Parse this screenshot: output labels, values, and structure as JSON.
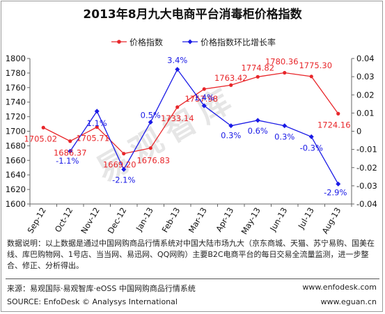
{
  "title": "2013年8月九大电商平台消毒柜价格指数",
  "legend": {
    "series1": "价格指数",
    "series2": "价格指数环比增长率"
  },
  "chart_data": {
    "type": "line",
    "title": "2013年8月九大电商平台消毒柜价格指数",
    "categories": [
      "Sep-12",
      "Oct-12",
      "Nov-12",
      "Dec-12",
      "Jan-13",
      "Feb-13",
      "Mar-13",
      "Apr-13",
      "May-13",
      "Jun-13",
      "Jul-13",
      "Aug-13"
    ],
    "series": [
      {
        "name": "价格指数",
        "axis": "left",
        "color": "#e8262a",
        "values": [
          1705.02,
          1686.37,
          1705.71,
          1669.2,
          1676.83,
          1733.14,
          1757.98,
          1763.42,
          1774.82,
          1780.36,
          1775.3,
          1724.16
        ],
        "labels": [
          "1705.02",
          "1686.37",
          "1705.71",
          "1669.20",
          "1676.83",
          "1733.14",
          "1757.98",
          "1763.42",
          "1774.82",
          "1780.36",
          "1775.30",
          "1724.16"
        ]
      },
      {
        "name": "价格指数环比增长率",
        "axis": "right",
        "color": "#1a1ae6",
        "values": [
          null,
          -0.011,
          0.011,
          -0.021,
          0.005,
          0.034,
          0.014,
          0.003,
          0.006,
          0.003,
          -0.003,
          -0.029
        ],
        "labels": [
          "",
          "-1.1%",
          "1.1%",
          "-2.1%",
          "0.5%",
          "3.4%",
          "1.4%",
          "0.3%",
          "0.6%",
          "0.3%",
          "-0.3%",
          "-2.9%"
        ]
      }
    ],
    "y_left": {
      "min": 1600,
      "max": 1800,
      "step": 20,
      "ticks": [
        "1600",
        "1620",
        "1640",
        "1660",
        "1680",
        "1700",
        "1720",
        "1740",
        "1760",
        "1780",
        "1800"
      ]
    },
    "y_right": {
      "min": -0.04,
      "max": 0.04,
      "step": 0.01,
      "ticks": [
        "-0.04",
        "-0.03",
        "-0.02",
        "-0.01",
        "0",
        "0.01",
        "0.02",
        "0.03",
        "0.04"
      ]
    },
    "grid": false,
    "legend_position": "top"
  },
  "note": "数据说明：以上数据是通过中国网购商品行情系统对中国大陆市场九大（京东商城、天猫、苏宁易购、国美在线、库巴购物网、1号店、当当网、易迅网、QQ网购）主要B2C电商平台的每日交易全流量监测，进一步整合、修正、分析得出。",
  "footer": {
    "source_cn": "来源：易观国际·易观智库·eOSS 中国网购商品行情系统",
    "url1": "www.enfodesk.com",
    "source_en": "SOURCE: EnfoDesk © Analysys International",
    "url2": "www.eguan.cn"
  },
  "watermark": "易观智库"
}
